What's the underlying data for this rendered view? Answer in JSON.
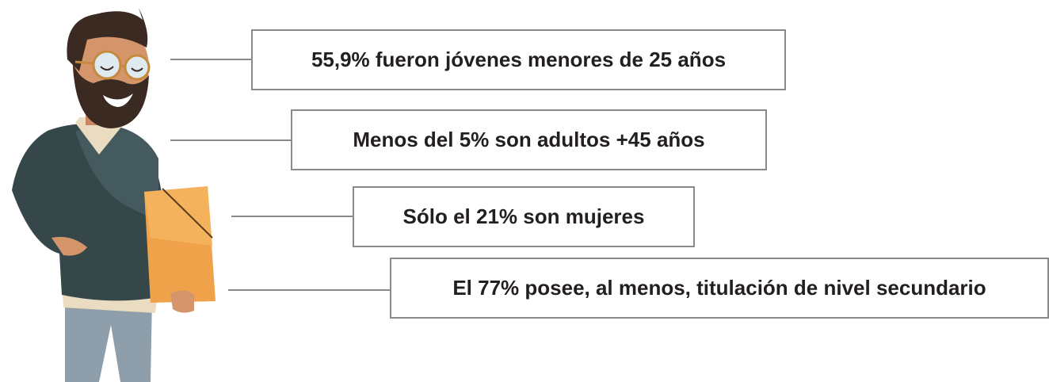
{
  "items": [
    {
      "text": "55,9% fueron jóvenes menores de 25 años"
    },
    {
      "text": "Menos del 5% son adultos +45 años"
    },
    {
      "text": "Sólo el 21% son mujeres"
    },
    {
      "text": "El 77% posee, al menos, titulación de nivel secundario"
    }
  ]
}
